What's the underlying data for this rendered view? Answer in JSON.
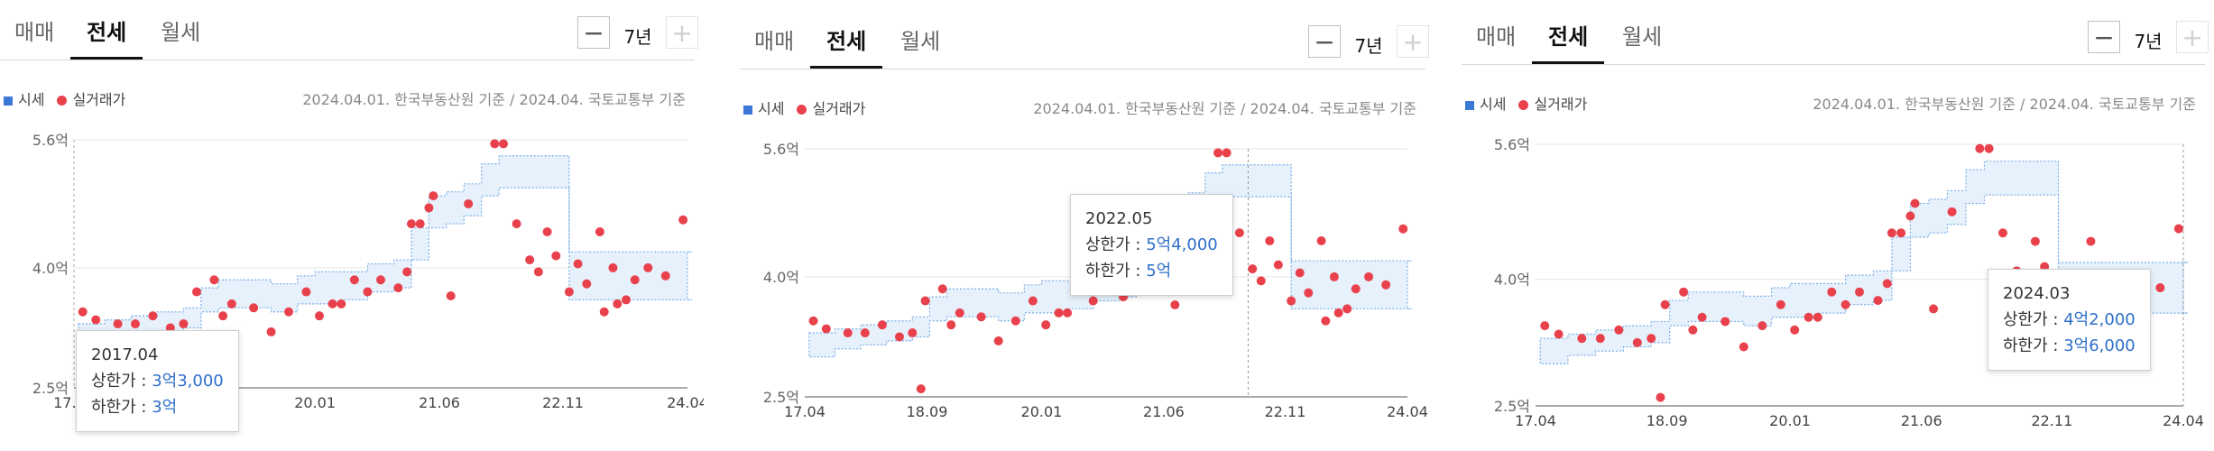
{
  "colors": {
    "accent": "#2f6fc9",
    "band_fill": "#e6f1fb",
    "band_line": "#7aaee6",
    "dot": "#e8414c",
    "legend_square": "#3b78d6"
  },
  "tabs": [
    "매매",
    "전세",
    "월세"
  ],
  "active_tab": "전세",
  "period_label": "7년",
  "minus_icon": "minus-icon",
  "plus_icon": "plus-icon",
  "legend": {
    "market": "시세",
    "actual": "실거래가"
  },
  "source_note": "2024.04.01. 한국부동산원 기준 / 2024.04. 국토교통부 기준",
  "tooltip_labels": {
    "upper": "상한가 : ",
    "lower": "하한가 : "
  },
  "tooltips": [
    {
      "date": "2017.04",
      "upper": "3억3,000",
      "lower": "3억"
    },
    {
      "date": "2022.05",
      "upper": "5억4,000",
      "lower": "5억"
    },
    {
      "date": "2024.03",
      "upper": "4억2,000",
      "lower": "3억6,000"
    }
  ],
  "chart_data": {
    "type": "scatter",
    "x_range": [
      "2017.04",
      "2024.04"
    ],
    "x_ticks": [
      "17.04",
      "18.09",
      "20.01",
      "21.06",
      "22.11",
      "24.04"
    ],
    "y_ticks": [
      "2.5억",
      "4.0억",
      "5.6억"
    ],
    "ylim": [
      2.5,
      5.6
    ],
    "y_unit": "억",
    "series": [
      {
        "name": "시세",
        "type": "area",
        "x": [
          2017.3,
          2017.6,
          2017.9,
          2018.2,
          2018.5,
          2018.7,
          2018.9,
          2019.2,
          2019.5,
          2019.8,
          2020.0,
          2020.3,
          2020.6,
          2020.9,
          2021.1,
          2021.3,
          2021.5,
          2021.7,
          2021.9,
          2022.1,
          2022.3,
          2022.5,
          2022.7,
          2022.9,
          2023.1,
          2023.3,
          2023.5,
          2023.7,
          2023.9,
          2024.3
        ],
        "upper": [
          3.3,
          3.35,
          3.4,
          3.45,
          3.5,
          3.75,
          3.85,
          3.85,
          3.8,
          3.9,
          3.95,
          3.95,
          4.05,
          4.1,
          4.5,
          4.9,
          4.95,
          5.05,
          5.3,
          5.4,
          5.4,
          5.4,
          5.4,
          4.2,
          4.2,
          4.2,
          4.2,
          4.2,
          4.2,
          4.2
        ],
        "lower": [
          3.0,
          3.1,
          3.15,
          3.2,
          3.25,
          3.45,
          3.5,
          3.5,
          3.45,
          3.55,
          3.55,
          3.6,
          3.7,
          3.75,
          4.1,
          4.5,
          4.55,
          4.65,
          4.9,
          5.0,
          5.0,
          5.0,
          5.0,
          3.6,
          3.6,
          3.6,
          3.6,
          3.6,
          3.6,
          3.6
        ]
      },
      {
        "name": "실거래가",
        "type": "scatter",
        "x": [
          2017.35,
          2017.5,
          2017.75,
          2017.95,
          2018.15,
          2018.35,
          2018.5,
          2018.65,
          2018.85,
          2018.6,
          2018.95,
          2019.05,
          2019.3,
          2019.5,
          2019.7,
          2019.9,
          2020.05,
          2020.2,
          2020.3,
          2020.45,
          2020.6,
          2020.75,
          2020.95,
          2021.05,
          2021.1,
          2021.2,
          2021.3,
          2021.35,
          2021.55,
          2021.75,
          2022.05,
          2022.15,
          2022.3,
          2022.45,
          2022.55,
          2022.65,
          2022.75,
          2022.9,
          2023.0,
          2023.1,
          2023.3,
          2023.45,
          2023.55,
          2023.65,
          2023.8,
          2024.0,
          2024.2,
          2023.25,
          2023.4
        ],
        "y": [
          3.45,
          3.35,
          3.3,
          3.3,
          3.4,
          3.25,
          3.3,
          3.7,
          3.85,
          2.6,
          3.4,
          3.55,
          3.5,
          3.2,
          3.45,
          3.7,
          3.4,
          3.55,
          3.55,
          3.85,
          3.7,
          3.85,
          3.75,
          3.95,
          4.55,
          4.55,
          4.75,
          4.9,
          3.65,
          4.8,
          5.55,
          5.55,
          4.55,
          4.1,
          3.95,
          4.45,
          4.15,
          3.7,
          4.05,
          3.8,
          3.45,
          3.55,
          3.6,
          3.85,
          4.0,
          3.9,
          4.6,
          4.45,
          4.0
        ]
      }
    ]
  }
}
